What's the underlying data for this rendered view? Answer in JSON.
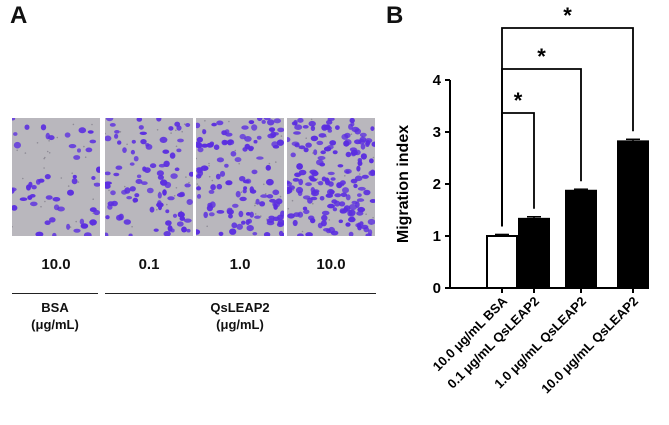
{
  "panel_a": {
    "letter": "A",
    "concentrations": [
      "10.0",
      "0.1",
      "1.0",
      "10.0"
    ],
    "groups": [
      {
        "label": "BSA",
        "unit": "(μg/mL)"
      },
      {
        "label": "QsLEAP2",
        "unit": "(μg/mL)"
      }
    ],
    "cell_density": [
      0.25,
      0.45,
      0.6,
      0.85
    ],
    "colors": {
      "stain": "#5b2ee0",
      "background": "#b9b7bd"
    }
  },
  "panel_b": {
    "letter": "B",
    "significance": [
      "*",
      "*",
      "*"
    ]
  },
  "chart_data": {
    "type": "bar",
    "categories": [
      "10.0 μg/mL BSA",
      "0.1 μg/mL QsLEAP2",
      "1.0 μg/mL QsLEAP2",
      "10.0 μg/mL QsLEAP2"
    ],
    "values": [
      1.0,
      1.33,
      1.87,
      2.82
    ],
    "errors": [
      0.03,
      0.04,
      0.03,
      0.04
    ],
    "fills": [
      "#ffffff",
      "#000000",
      "#000000",
      "#000000"
    ],
    "ylabel": "Migration index",
    "ylim": [
      0,
      4
    ],
    "yticks": [
      "0",
      "1",
      "2",
      "3",
      "4"
    ],
    "grid": false,
    "comparisons": [
      {
        "from": 0,
        "to": 1,
        "label": "*"
      },
      {
        "from": 0,
        "to": 2,
        "label": "*"
      },
      {
        "from": 0,
        "to": 3,
        "label": "*"
      }
    ]
  }
}
